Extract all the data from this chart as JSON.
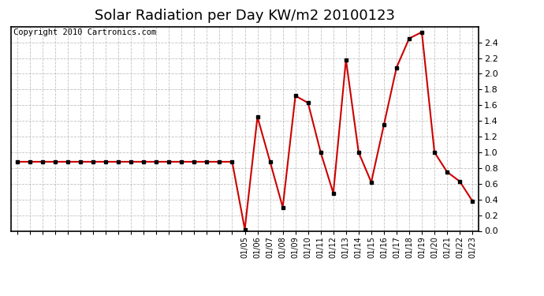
{
  "title": "Solar Radiation per Day KW/m2 20100123",
  "copyright": "Copyright 2010 Cartronics.com",
  "ylim": [
    0.0,
    2.6
  ],
  "yticks": [
    0.0,
    0.2,
    0.4,
    0.6,
    0.8,
    1.0,
    1.2,
    1.4,
    1.6,
    1.8,
    2.0,
    2.2,
    2.4
  ],
  "all_dates": [
    "",
    "",
    "",
    "",
    "",
    "",
    "",
    "",
    "",
    "",
    "",
    "",
    "",
    "",
    "",
    "",
    "",
    "",
    "01/05",
    "01/06",
    "01/07",
    "01/08",
    "01/09",
    "01/10",
    "01/11",
    "01/12",
    "01/13",
    "01/14",
    "01/15",
    "01/16",
    "01/17",
    "01/18",
    "01/19",
    "01/20",
    "01/21",
    "01/22",
    "01/23"
  ],
  "values": [
    0.88,
    0.88,
    0.88,
    0.88,
    0.88,
    0.88,
    0.88,
    0.88,
    0.88,
    0.88,
    0.88,
    0.88,
    0.88,
    0.88,
    0.88,
    0.88,
    0.88,
    0.88,
    0.02,
    1.45,
    0.88,
    0.3,
    1.72,
    1.63,
    1.0,
    0.48,
    2.18,
    1.0,
    0.62,
    1.35,
    2.08,
    2.45,
    2.53,
    1.0,
    0.75,
    0.63,
    0.38
  ],
  "line_color": "#cc0000",
  "marker_color": "#000000",
  "bg_color": "#ffffff",
  "grid_color": "#bbbbbb",
  "title_fontsize": 13,
  "copyright_fontsize": 7.5
}
